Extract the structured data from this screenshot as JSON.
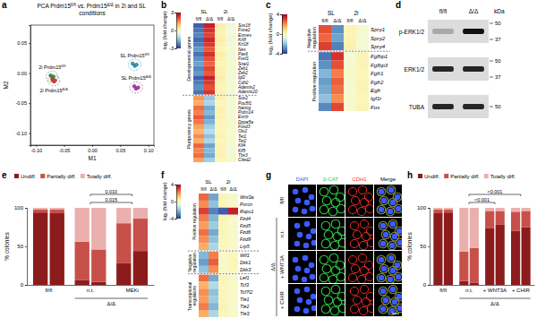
{
  "chart_data": [
    {
      "panel_label": "a",
      "type": "scatter",
      "title": "PCA Prdm15fl/fl vs. Prdm15Δ/Δ in 2i and SL conditions",
      "x_label": "M1",
      "y_label": "M2",
      "xlim": [
        -0.11,
        0.11
      ],
      "xticks": [
        {
          "value": -0.1,
          "label": "-0.10"
        },
        -0.05,
        {
          "value": 0,
          "label": "0.00"
        },
        0.05,
        {
          "value": 0.1,
          "label": "0.10"
        }
      ],
      "ylim": [
        -0.12,
        0.08
      ],
      "yticks": [
        {
          "value": -0.1,
          "label": "-0.10"
        },
        -0.05,
        {
          "value": 0,
          "label": "0.00"
        },
        0.05
      ],
      "series": [
        {
          "name": "2i Prdm15fl/fl",
          "color": "#2e9e3e",
          "x": [
            -0.074,
            -0.071,
            -0.069
          ],
          "values": [
            -0.004,
            -0.008,
            -0.006
          ]
        },
        {
          "name": "2i Prdm15Δ/Δ",
          "color": "#e0413a",
          "x": [
            -0.071,
            -0.068,
            -0.066
          ],
          "values": [
            -0.011,
            -0.014,
            -0.012
          ]
        },
        {
          "name": "SL Prdm15fl/fl",
          "color": "#2aa0c0",
          "x": [
            0.072,
            0.076,
            0.079
          ],
          "values": [
            0.016,
            0.012,
            0.014
          ]
        },
        {
          "name": "SL Prdm15Δ/Δ",
          "color": "#b03ab0",
          "x": [
            0.075,
            0.078,
            0.082
          ],
          "values": [
            -0.022,
            -0.026,
            -0.024
          ]
        }
      ]
    },
    {
      "panel_label": "b",
      "type": "heatmap",
      "column_groups": [
        "SL",
        "2i"
      ],
      "columns": [
        "fl/fl",
        "Δ/Δ",
        "fl/fl",
        "Δ/Δ"
      ],
      "colorbar": {
        "label": "log₂ (fold change)",
        "range": [
          -3,
          3
        ],
        "ticks": [
          -3,
          0,
          3
        ]
      },
      "row_groups": [
        {
          "name": "Developmental genes",
          "rows": [
            "Sox18",
            "Foxa2",
            "Eomes",
            "Krt8",
            "Krt18",
            "Nes",
            "Pax6",
            "Foxf1",
            "Snai1",
            "Zeb1",
            "Zeb2",
            "Igf2",
            "Cdh2",
            "Adamts2",
            "Adamts20"
          ],
          "values": [
            [
              -2.6,
              2.6,
              0.3,
              -0.3
            ],
            [
              -2.4,
              2.4,
              0.2,
              -0.2
            ],
            [
              -2.2,
              2.2,
              0.2,
              -0.2
            ],
            [
              -2.5,
              2.5,
              0.3,
              -0.3
            ],
            [
              -2.3,
              2.3,
              0.2,
              -0.2
            ],
            [
              -2.0,
              2.0,
              0.1,
              -0.1
            ],
            [
              -2.4,
              2.4,
              0.3,
              -0.3
            ],
            [
              -2.1,
              2.1,
              0.2,
              -0.2
            ],
            [
              -1.9,
              1.9,
              0.1,
              -0.1
            ],
            [
              -2.2,
              2.2,
              0.2,
              -0.2
            ],
            [
              -2.0,
              2.0,
              0.2,
              -0.2
            ],
            [
              -2.6,
              2.6,
              0.3,
              -0.3
            ],
            [
              -2.3,
              2.3,
              0.2,
              -0.2
            ],
            [
              -2.1,
              2.1,
              0.1,
              -0.1
            ],
            [
              -2.4,
              2.4,
              0.2,
              -0.2
            ]
          ]
        },
        {
          "name": "Pluripotency genes",
          "rows": [
            "Sox2",
            "Pou5f1",
            "Nanog",
            "Prdm14",
            "Esrrb",
            "Dppa5a",
            "Foxd3",
            "Otx2",
            "Tet1",
            "Tet2",
            "Klf4",
            "Klf5",
            "Tbx3",
            "Cited2"
          ],
          "values": [
            [
              1.4,
              -1.4,
              0.2,
              -0.2
            ],
            [
              1.2,
              -1.2,
              0.1,
              -0.1
            ],
            [
              1.8,
              -1.8,
              0.2,
              -0.2
            ],
            [
              1.6,
              -1.6,
              0.2,
              -0.2
            ],
            [
              2.0,
              -2.0,
              0.2,
              -0.2
            ],
            [
              1.7,
              -1.7,
              0.1,
              -0.1
            ],
            [
              1.3,
              -1.3,
              0.1,
              -0.1
            ],
            [
              1.1,
              -1.1,
              0.1,
              -0.1
            ],
            [
              1.5,
              -1.5,
              0.2,
              -0.2
            ],
            [
              1.2,
              -1.2,
              0.1,
              -0.1
            ],
            [
              1.9,
              -1.9,
              0.2,
              -0.2
            ],
            [
              1.6,
              -1.6,
              0.2,
              -0.2
            ],
            [
              1.8,
              -1.8,
              0.2,
              -0.2
            ],
            [
              1.3,
              -1.3,
              0.1,
              -0.1
            ]
          ]
        }
      ]
    },
    {
      "panel_label": "c",
      "type": "heatmap",
      "column_groups": [
        "SL",
        "2i"
      ],
      "columns": [
        "fl/fl",
        "Δ/Δ",
        "fl/fl",
        "Δ/Δ"
      ],
      "colorbar": {
        "label": "log₂ (fold change)",
        "range": [
          -4,
          4
        ],
        "ticks": [
          -4,
          0,
          4
        ]
      },
      "row_groups": [
        {
          "name": "Negative regulation",
          "rows": [
            "Spry1",
            "Spry2",
            "Spry4"
          ],
          "values": [
            [
              2.8,
              -2.8,
              0.2,
              -0.2
            ],
            [
              2.5,
              -2.5,
              0.2,
              -0.2
            ],
            [
              3.0,
              -3.0,
              0.3,
              -0.3
            ]
          ]
        },
        {
          "name": "Positive regulation",
          "rows": [
            "Fgfbp1",
            "Fgfbp3",
            "Fgfr1",
            "Fgfr2",
            "Egfr",
            "Igf1r",
            "Fos"
          ],
          "values": [
            [
              -3.2,
              3.2,
              -0.2,
              0.2
            ],
            [
              -2.8,
              2.8,
              -0.2,
              0.2
            ],
            [
              -2.2,
              2.2,
              -0.1,
              0.1
            ],
            [
              -2.6,
              2.6,
              -0.2,
              0.2
            ],
            [
              -2.4,
              2.4,
              -0.2,
              0.2
            ],
            [
              -2.0,
              2.0,
              -0.1,
              0.1
            ],
            [
              -2.9,
              2.9,
              -0.2,
              0.2
            ]
          ]
        }
      ]
    },
    {
      "panel_label": "d",
      "type": "blot",
      "columns": [
        "fl/fl",
        "Δ/Δ"
      ],
      "unit": "kDa",
      "rows": [
        {
          "name": "p-ERK1/2",
          "band_intensity": [
            0.25,
            1
          ],
          "markers": [
            50,
            37
          ]
        },
        {
          "name": "ERK1/2",
          "band_intensity": [
            0.9,
            0.9
          ],
          "markers": [
            50,
            37
          ]
        },
        {
          "name": "TUBA",
          "band_intensity": [
            0.9,
            0.9
          ],
          "markers": [
            50
          ]
        }
      ]
    },
    {
      "panel_label": "e",
      "type": "bar",
      "stacked": true,
      "legend": "top",
      "y_label": "% colonies",
      "ylim": [
        0,
        100
      ],
      "yticks": [
        0,
        50,
        100
      ],
      "categories": [
        "fl/fl",
        "n.t.",
        "MEKi"
      ],
      "category_groups": [
        {
          "name": "Δ/Δ",
          "categories": [
            "n.t.",
            "MEKi"
          ]
        }
      ],
      "series": [
        {
          "name": "Undiff.",
          "color": "#8c1c1c",
          "values": [
            [
              94,
              93
            ],
            [
              6,
              4
            ],
            [
              28,
              44
            ]
          ]
        },
        {
          "name": "Partially diff.",
          "color": "#c8504a",
          "values": [
            [
              4,
              5
            ],
            [
              50,
              42
            ],
            [
              52,
              42
            ]
          ]
        },
        {
          "name": "Totally diff.",
          "color": "#eab0ae",
          "values": [
            [
              2,
              2
            ],
            [
              44,
              54
            ],
            [
              20,
              14
            ]
          ]
        }
      ],
      "annotations": [
        {
          "text": "0.010",
          "from": "n.t.",
          "to": "MEKi"
        },
        {
          "text": "0.015",
          "from": "n.t.",
          "to": "MEKi"
        }
      ]
    },
    {
      "panel_label": "f",
      "type": "heatmap",
      "column_groups": [
        "SL",
        "2i"
      ],
      "columns": [
        "fl/fl",
        "Δ/Δ",
        "fl/fl",
        "Δ/Δ"
      ],
      "colorbar": {
        "label": "log₂ (fold change)",
        "range": [
          -4,
          4
        ],
        "ticks": [
          -4,
          0,
          4
        ]
      },
      "row_groups": [
        {
          "name": "Positive regulation",
          "rows": [
            "Wnt3a",
            "Porcn",
            "Rspo1",
            "Fzd4",
            "Fzd5",
            "Fzd6",
            "Fzd9",
            "Lrp5"
          ],
          "values": [
            [
              2.5,
              -2.5,
              0.2,
              -0.2
            ],
            [
              2.0,
              -2.0,
              0.1,
              -0.1
            ],
            [
              3.0,
              -3.0,
              -3.5,
              3.5
            ],
            [
              2.2,
              -2.2,
              0.2,
              -0.2
            ],
            [
              1.8,
              -1.8,
              0.1,
              -0.1
            ],
            [
              2.4,
              -2.4,
              0.2,
              -0.2
            ],
            [
              2.0,
              -2.0,
              0.1,
              -0.1
            ],
            [
              1.6,
              -1.6,
              0.1,
              -0.1
            ]
          ]
        },
        {
          "name": "Negative regulation",
          "rows": [
            "Wif1",
            "Dkk1",
            "Dkk3"
          ],
          "values": [
            [
              -2.2,
              2.2,
              -0.1,
              0.1
            ],
            [
              -2.6,
              2.6,
              -0.2,
              0.2
            ],
            [
              -2.0,
              2.0,
              -0.1,
              0.1
            ]
          ]
        },
        {
          "name": "Transcriptional regulators",
          "rows": [
            "Lef1",
            "Tcf3",
            "Tcf7l2",
            "Tle1",
            "Tle2",
            "Tle3"
          ],
          "values": [
            [
              2.4,
              -2.4,
              0.2,
              -0.2
            ],
            [
              1.5,
              -1.5,
              0.1,
              -0.1
            ],
            [
              2.0,
              -2.0,
              0.1,
              -0.1
            ],
            [
              1.8,
              -1.8,
              0.1,
              -0.1
            ],
            [
              2.2,
              -2.2,
              0.2,
              -0.2
            ],
            [
              1.6,
              -1.6,
              0.1,
              -0.1
            ]
          ]
        }
      ]
    },
    {
      "panel_label": "g",
      "type": "image_grid",
      "columns": [
        "DAPI",
        "β-CAT",
        "CDH1",
        "Merge"
      ],
      "colors": [
        "#3c5aff",
        "#2ecc40",
        "#ff3030",
        "#000000"
      ],
      "row_groups": [
        {
          "rows": [
            "fl/fl"
          ]
        },
        {
          "name": "Δ/Δ",
          "rows": [
            "n.t.",
            "+ WNT3A",
            "+ CHIR"
          ]
        }
      ]
    },
    {
      "panel_label": "h",
      "type": "bar",
      "stacked": true,
      "legend": "top",
      "y_label": "% colonies",
      "ylim": [
        0,
        100
      ],
      "yticks": [
        0,
        50,
        100
      ],
      "categories": [
        "fl/fl",
        "n.t.",
        "+ WNT3A",
        "+ CHIR"
      ],
      "category_groups": [
        {
          "name": "Δ/Δ",
          "categories": [
            "n.t.",
            "+ WNT3A",
            "+ CHIR"
          ]
        }
      ],
      "series": [
        {
          "name": "Undiff.",
          "color": "#8c1c1c",
          "values": [
            [
              93,
              94
            ],
            [
              5,
              3
            ],
            [
              74,
              78
            ],
            [
              70,
              75
            ]
          ]
        },
        {
          "name": "Partially diff.",
          "color": "#c8504a",
          "values": [
            [
              5,
              4
            ],
            [
              38,
              45
            ],
            [
              22,
              18
            ],
            [
              25,
              21
            ]
          ]
        },
        {
          "name": "Totally diff.",
          "color": "#eab0ae",
          "values": [
            [
              2,
              2
            ],
            [
              57,
              52
            ],
            [
              4,
              4
            ],
            [
              5,
              4
            ]
          ]
        }
      ],
      "annotations": [
        {
          "text": "<0.001",
          "from": "n.t.",
          "to": "+ CHIR"
        },
        {
          "text": "<0.001",
          "from": "n.t.",
          "to": "+ WNT3A"
        }
      ]
    }
  ]
}
